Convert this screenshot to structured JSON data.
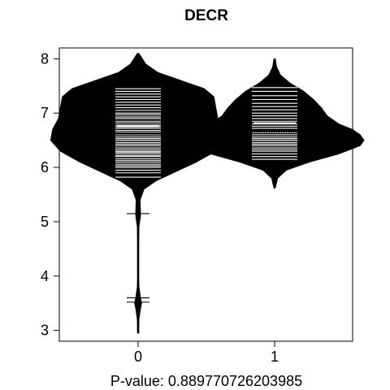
{
  "chart_data": {
    "type": "beanplot",
    "title": "DECR",
    "xlabel": "P-value: 0.889770726203985",
    "ylabel": "",
    "categories": [
      "0",
      "1"
    ],
    "ylim": [
      2.8,
      8.2
    ],
    "y_ticks": [
      3,
      4,
      5,
      6,
      7,
      8
    ],
    "x_ticks": [
      "0",
      "1"
    ],
    "grid": false,
    "legend": "none",
    "overall_mean": 6.64,
    "colors": {
      "bean_fill": "#000000",
      "observation_lines": "#ffffff",
      "axes": "#000000",
      "background": "#ffffff"
    },
    "series": [
      {
        "category": "0",
        "mean": 6.62,
        "density": [
          [
            2.95,
            0.0
          ],
          [
            3.2,
            0.004
          ],
          [
            3.4,
            0.012
          ],
          [
            3.5,
            0.018
          ],
          [
            3.6,
            0.012
          ],
          [
            3.8,
            0.004
          ],
          [
            4.0,
            0.002
          ],
          [
            4.5,
            0.002
          ],
          [
            4.9,
            0.004
          ],
          [
            5.1,
            0.012
          ],
          [
            5.2,
            0.012
          ],
          [
            5.4,
            0.01
          ],
          [
            5.6,
            0.03
          ],
          [
            5.75,
            0.09
          ],
          [
            5.9,
            0.18
          ],
          [
            6.1,
            0.3
          ],
          [
            6.3,
            0.4
          ],
          [
            6.5,
            0.45
          ],
          [
            6.7,
            0.44
          ],
          [
            6.9,
            0.41
          ],
          [
            7.1,
            0.4
          ],
          [
            7.3,
            0.39
          ],
          [
            7.45,
            0.34
          ],
          [
            7.6,
            0.22
          ],
          [
            7.75,
            0.1
          ],
          [
            7.9,
            0.04
          ],
          [
            8.1,
            0.0
          ]
        ],
        "observations": [
          3.52,
          3.6,
          5.15,
          5.7,
          5.75,
          5.82,
          5.9,
          5.95,
          6.0,
          6.03,
          6.06,
          6.1,
          6.13,
          6.16,
          6.2,
          6.22,
          6.25,
          6.28,
          6.3,
          6.33,
          6.36,
          6.4,
          6.43,
          6.46,
          6.5,
          6.53,
          6.56,
          6.6,
          6.62,
          6.65,
          6.68,
          6.72,
          6.75,
          6.78,
          6.82,
          6.85,
          6.9,
          6.93,
          6.97,
          7.0,
          7.05,
          7.1,
          7.15,
          7.2,
          7.25,
          7.3,
          7.35,
          7.4,
          7.45
        ]
      },
      {
        "category": "1",
        "mean": 6.68,
        "density": [
          [
            5.62,
            0.0
          ],
          [
            5.8,
            0.015
          ],
          [
            5.95,
            0.06
          ],
          [
            6.1,
            0.18
          ],
          [
            6.25,
            0.33
          ],
          [
            6.4,
            0.44
          ],
          [
            6.5,
            0.46
          ],
          [
            6.6,
            0.44
          ],
          [
            6.7,
            0.4
          ],
          [
            6.8,
            0.33
          ],
          [
            6.95,
            0.27
          ],
          [
            7.1,
            0.24
          ],
          [
            7.25,
            0.2
          ],
          [
            7.4,
            0.15
          ],
          [
            7.55,
            0.08
          ],
          [
            7.7,
            0.03
          ],
          [
            7.85,
            0.01
          ],
          [
            8.0,
            0.0
          ]
        ],
        "observations": [
          6.15,
          6.2,
          6.25,
          6.3,
          6.33,
          6.36,
          6.4,
          6.43,
          6.46,
          6.5,
          6.53,
          6.56,
          6.6,
          6.64,
          6.68,
          6.72,
          6.76,
          6.8,
          6.85,
          6.9,
          6.95,
          7.0,
          7.06,
          7.12,
          7.18,
          7.25,
          7.32,
          7.4,
          7.47
        ]
      }
    ]
  }
}
